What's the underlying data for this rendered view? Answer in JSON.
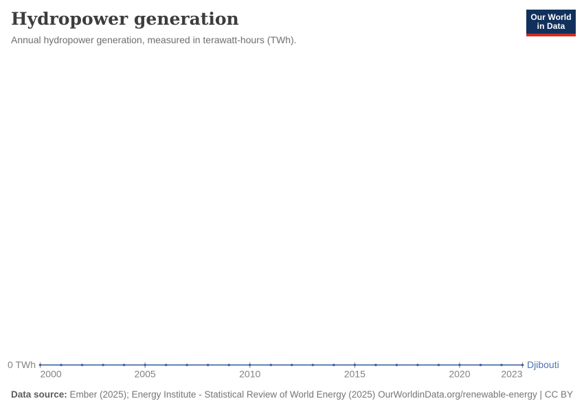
{
  "header": {
    "title": "Hydropower generation",
    "subtitle": "Annual hydropower generation, measured in terawatt-hours (TWh)."
  },
  "logo": {
    "line1": "Our World",
    "line2": "in Data",
    "bg_color": "#12305c",
    "bar_color": "#d42b20"
  },
  "chart_data": {
    "type": "line",
    "title": "Hydropower generation",
    "x": [
      2000,
      2001,
      2002,
      2003,
      2004,
      2005,
      2006,
      2007,
      2008,
      2009,
      2010,
      2011,
      2012,
      2013,
      2014,
      2015,
      2016,
      2017,
      2018,
      2019,
      2020,
      2021,
      2022,
      2023
    ],
    "series": [
      {
        "name": "Djibouti",
        "values": [
          0,
          0,
          0,
          0,
          0,
          0,
          0,
          0,
          0,
          0,
          0,
          0,
          0,
          0,
          0,
          0,
          0,
          0,
          0,
          0,
          0,
          0,
          0,
          0
        ]
      }
    ],
    "x_ticks": [
      2000,
      2005,
      2010,
      2015,
      2020,
      2023
    ],
    "y_tick_label": "0 TWh",
    "y_tick_value": 0,
    "ylim": [
      0,
      0
    ],
    "grid": false,
    "legend_position": "end-of-line",
    "colors": {
      "line": "#4a6aa5",
      "dot": "#3d62a6",
      "entity_label": "#4d72b3",
      "axis_text": "#828282",
      "tick_mark": "#8f8f8f"
    }
  },
  "footer": {
    "data_source_label": "Data source:",
    "data_source_value": " Ember (2025); Energy Institute - Statistical Review of World Energy (2025)",
    "credit": "OurWorldinData.org/renewable-energy | CC BY"
  }
}
